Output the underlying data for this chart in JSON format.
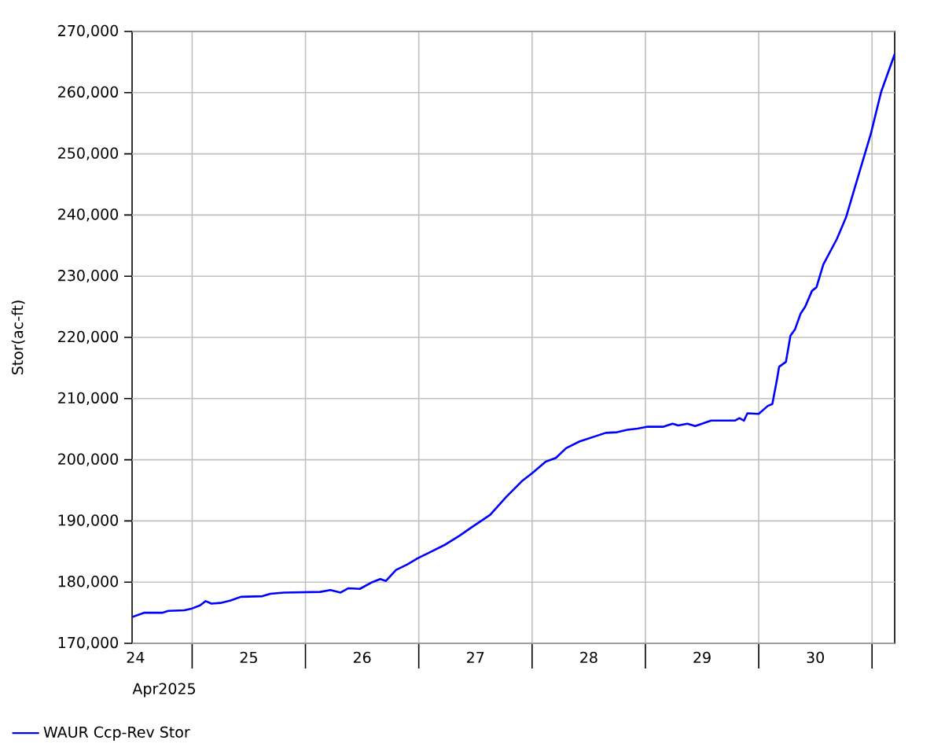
{
  "chart_data": {
    "type": "line",
    "xlabel": "Apr2025",
    "ylabel": "Stor(ac-ft)",
    "x": [
      24.47,
      24.58,
      24.74,
      24.79,
      24.93,
      25.0,
      25.07,
      25.12,
      25.17,
      25.25,
      25.34,
      25.43,
      25.62,
      25.69,
      25.81,
      26.13,
      26.22,
      26.31,
      26.38,
      26.48,
      26.59,
      26.66,
      26.71,
      26.8,
      26.9,
      26.99,
      27.1,
      27.24,
      27.36,
      27.47,
      27.63,
      27.77,
      27.91,
      28.0,
      28.12,
      28.21,
      28.3,
      28.42,
      28.65,
      28.75,
      28.84,
      28.93,
      29.02,
      29.16,
      29.24,
      29.29,
      29.37,
      29.44,
      29.58,
      29.79,
      29.83,
      29.87,
      29.9,
      30.0,
      30.08,
      30.12,
      30.16,
      30.18,
      30.24,
      30.28,
      30.32,
      30.37,
      30.41,
      30.47,
      30.51,
      30.57,
      30.69,
      30.77,
      30.9,
      30.99,
      31.08,
      31.2
    ],
    "series": [
      {
        "name": "WAUR Ccp-Rev Stor",
        "color": "#0000ff",
        "values": [
          174300,
          175000,
          175000,
          175300,
          175400,
          175700,
          176200,
          176900,
          176500,
          176600,
          177000,
          177600,
          177700,
          178100,
          178300,
          178400,
          178700,
          178300,
          179000,
          178900,
          180000,
          180500,
          180200,
          182000,
          182900,
          183900,
          184900,
          186200,
          187600,
          189000,
          191000,
          193900,
          196500,
          197800,
          199700,
          200300,
          201900,
          203000,
          204400,
          204500,
          204900,
          205100,
          205400,
          205400,
          205900,
          205600,
          205900,
          205500,
          206400,
          206400,
          206800,
          206400,
          207600,
          207500,
          208800,
          209100,
          213000,
          215200,
          216000,
          220300,
          221300,
          223900,
          225000,
          227600,
          228200,
          231900,
          236100,
          239600,
          247700,
          253300,
          260100,
          266300
        ]
      }
    ],
    "xlim": [
      24.47,
      31.2
    ],
    "xticks": [
      {
        "value": 25,
        "label": null
      },
      {
        "value": 26,
        "label": null
      },
      {
        "value": 27,
        "label": null
      },
      {
        "value": 28,
        "label": null
      },
      {
        "value": 29,
        "label": null
      },
      {
        "value": 30,
        "label": null
      },
      {
        "value": 31,
        "label": null
      },
      {
        "value": 24.5,
        "label": "24"
      },
      {
        "value": 25.5,
        "label": "25"
      },
      {
        "value": 26.5,
        "label": "26"
      },
      {
        "value": 27.5,
        "label": "27"
      },
      {
        "value": 28.5,
        "label": "28"
      },
      {
        "value": 29.5,
        "label": "29"
      },
      {
        "value": 30.5,
        "label": "30"
      }
    ],
    "ylim": [
      170000,
      270000
    ],
    "yticks": [
      {
        "value": 170000,
        "label": "170,000"
      },
      {
        "value": 180000,
        "label": "180,000"
      },
      {
        "value": 190000,
        "label": "190,000"
      },
      {
        "value": 200000,
        "label": "200,000"
      },
      {
        "value": 210000,
        "label": "210,000"
      },
      {
        "value": 220000,
        "label": "220,000"
      },
      {
        "value": 230000,
        "label": "230,000"
      },
      {
        "value": 240000,
        "label": "240,000"
      },
      {
        "value": 250000,
        "label": "250,000"
      },
      {
        "value": 260000,
        "label": "260,000"
      },
      {
        "value": 270000,
        "label": "270,000"
      }
    ],
    "grid": true,
    "legend": "bottom left",
    "marker": "none",
    "line_style": "solid"
  }
}
